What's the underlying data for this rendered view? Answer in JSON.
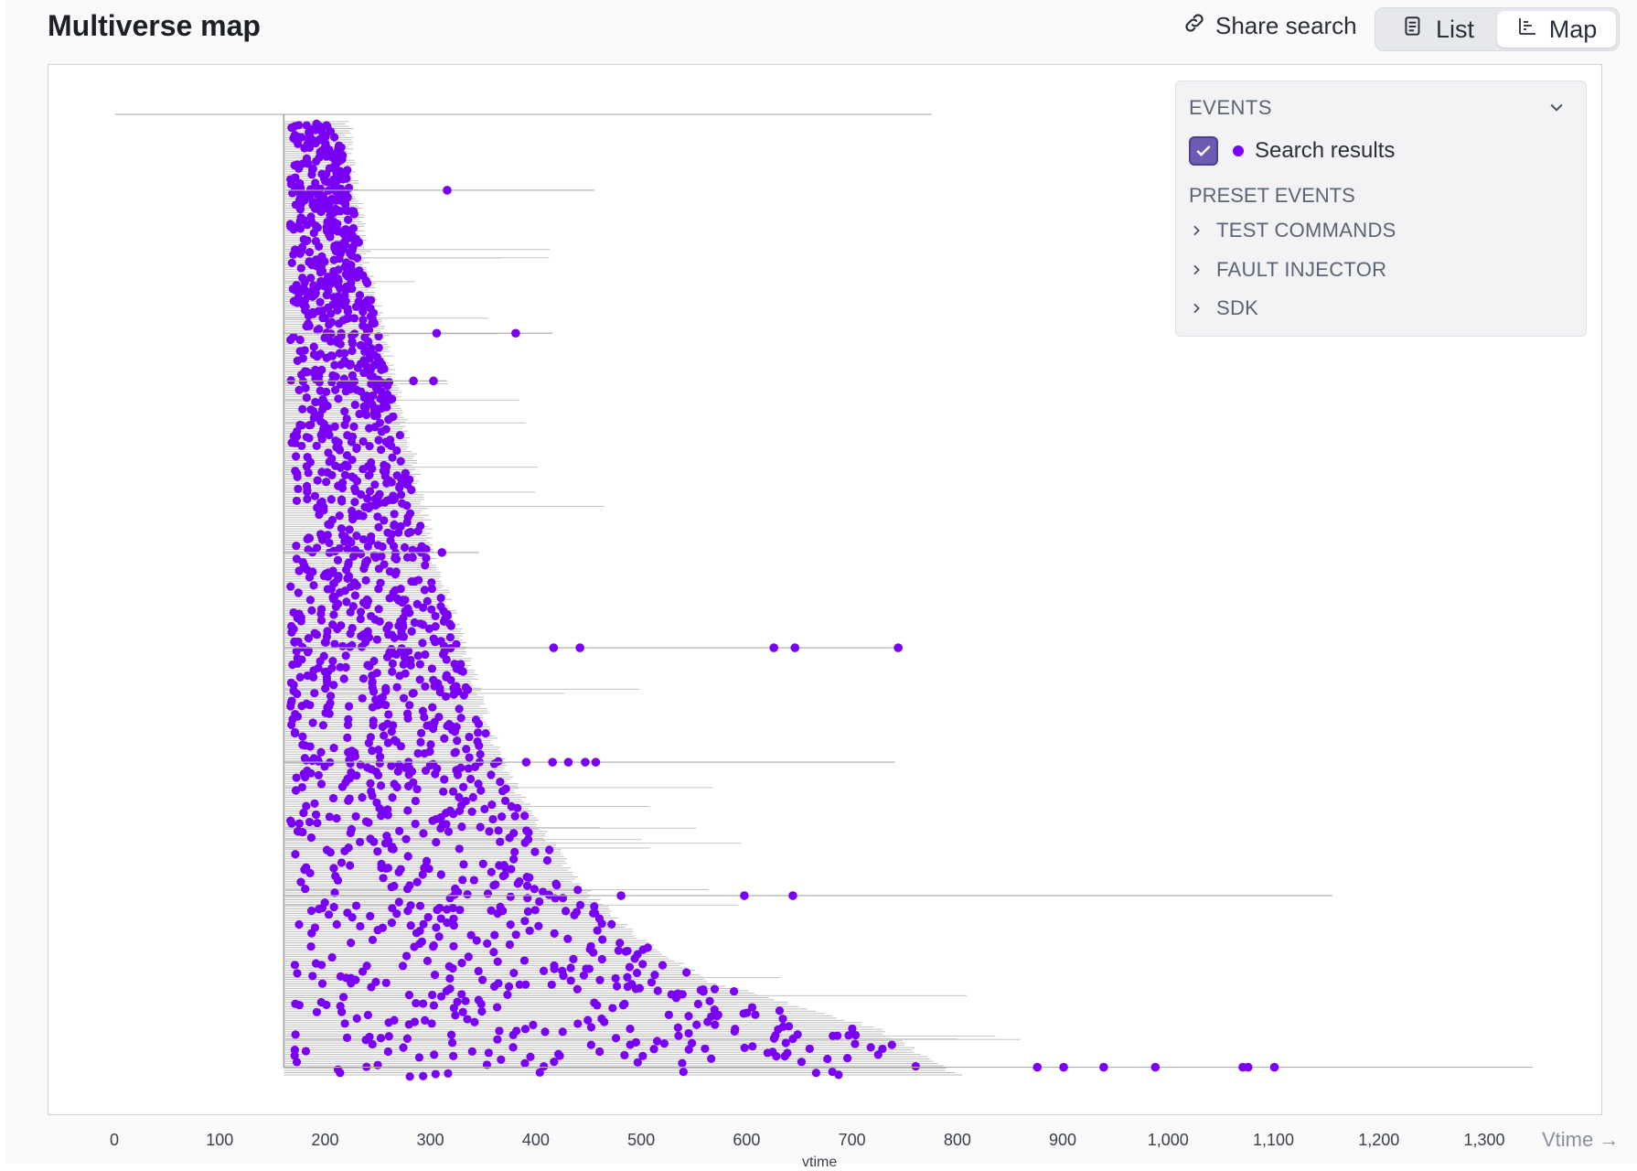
{
  "header": {
    "title": "Multiverse map",
    "share_label": "Share search",
    "view_toggle": {
      "list_label": "List",
      "map_label": "Map",
      "active": "Map"
    }
  },
  "legend": {
    "events_heading": "EVENTS",
    "search_results_label": "Search results",
    "search_results_checked": true,
    "preset_heading": "PRESET EVENTS",
    "preset_items": [
      "TEST COMMANDS",
      "FAULT INJECTOR",
      "SDK"
    ]
  },
  "colors": {
    "event_dot": "#7a00f5",
    "branch_line": "#b8b8b8",
    "checkbox": "#6c5bb0"
  },
  "chart_data": {
    "type": "scatter",
    "x_axis_label": "Vtime →",
    "x_axis_cut_label": "vtime",
    "x_ticks": [
      "0",
      "100",
      "200",
      "300",
      "400",
      "500",
      "600",
      "700",
      "800",
      "900",
      "1,000",
      "1,100",
      "1,200",
      "1,300"
    ],
    "xlim": [
      0,
      1300
    ],
    "root_branch": {
      "start": 0,
      "end": 775
    },
    "fork_time": 160,
    "envelope": [
      [
        0,
        220
      ],
      [
        0.05,
        225
      ],
      [
        0.1,
        233
      ],
      [
        0.15,
        240
      ],
      [
        0.2,
        250
      ],
      [
        0.25,
        260
      ],
      [
        0.3,
        270
      ],
      [
        0.35,
        282
      ],
      [
        0.4,
        292
      ],
      [
        0.45,
        300
      ],
      [
        0.5,
        315
      ],
      [
        0.55,
        330
      ],
      [
        0.6,
        345
      ],
      [
        0.65,
        360
      ],
      [
        0.7,
        380
      ],
      [
        0.75,
        410
      ],
      [
        0.8,
        440
      ],
      [
        0.85,
        490
      ],
      [
        0.9,
        560
      ],
      [
        0.95,
        720
      ],
      [
        1.0,
        800
      ]
    ],
    "outlier_branches": [
      {
        "row": 0.07,
        "end": 455,
        "events": [
          315
        ]
      },
      {
        "row": 0.22,
        "end": 415,
        "events": [
          305,
          380
        ]
      },
      {
        "row": 0.27,
        "end": 315,
        "events": [
          283,
          302
        ]
      },
      {
        "row": 0.45,
        "end": 345,
        "events": [
          310
        ]
      },
      {
        "row": 0.55,
        "end": 745,
        "events": [
          416,
          441,
          625,
          645,
          743
        ]
      },
      {
        "row": 0.67,
        "end": 740,
        "events": [
          390,
          415,
          430,
          446,
          456
        ]
      },
      {
        "row": 0.81,
        "end": 1155,
        "events": [
          480,
          597,
          643
        ]
      },
      {
        "row": 0.99,
        "end": 1345,
        "events": [
          875,
          900,
          938,
          987,
          1070,
          1075,
          1100
        ]
      }
    ],
    "series": [
      {
        "name": "Search results"
      }
    ]
  }
}
